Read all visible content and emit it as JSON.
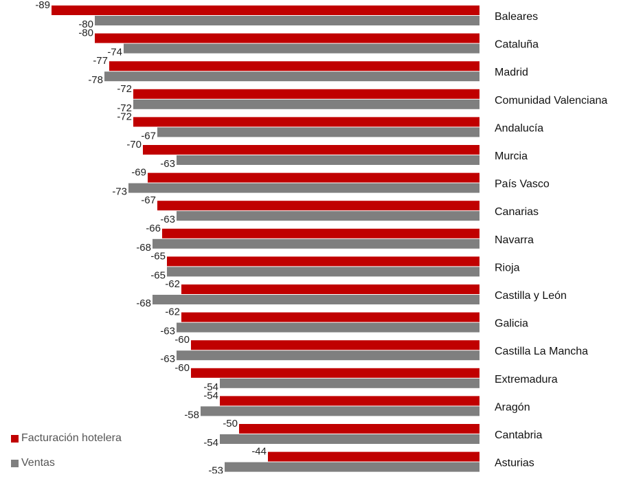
{
  "chart_data": {
    "type": "bar",
    "orientation": "horizontal",
    "categories": [
      "Baleares",
      "Cataluña",
      "Madrid",
      "Comunidad Valenciana",
      "Andalucía",
      "Murcia",
      "País Vasco",
      "Canarias",
      "Navarra",
      "Rioja",
      "Castilla y León",
      "Galicia",
      "Castilla La Mancha",
      "Extremadura",
      "Aragón",
      "Cantabria",
      "Asturias"
    ],
    "series": [
      {
        "name": "Facturación hotelera",
        "color": "#c00000",
        "values": [
          -89,
          -80,
          -77,
          -72,
          -72,
          -70,
          -69,
          -67,
          -66,
          -65,
          -62,
          -62,
          -60,
          -60,
          -54,
          -50,
          -44
        ]
      },
      {
        "name": "Ventas",
        "color": "#7f7f7f",
        "values": [
          -80,
          -74,
          -78,
          -72,
          -67,
          -63,
          -73,
          -63,
          -68,
          -65,
          -68,
          -63,
          -63,
          -54,
          -58,
          -54,
          -53
        ]
      }
    ],
    "xlim": [
      -89,
      0
    ],
    "legend_position": "bottom-left",
    "grid": false
  }
}
